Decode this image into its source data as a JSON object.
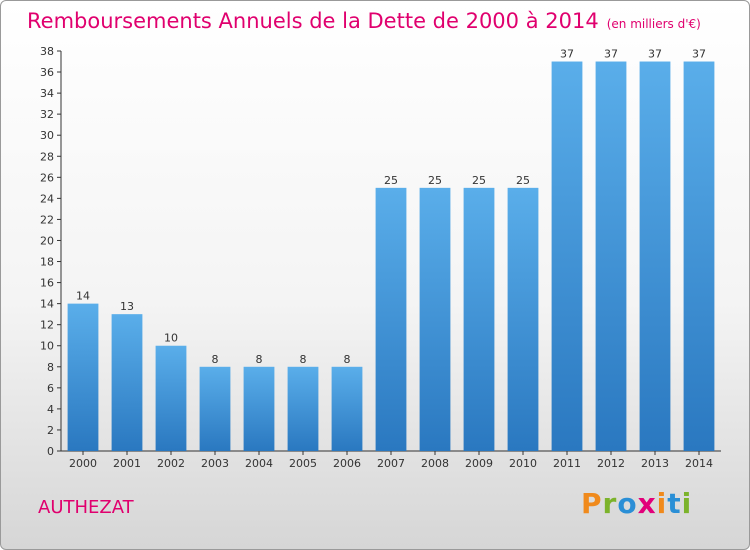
{
  "title": "Remboursements Annuels de la Dette de 2000 à 2014",
  "unit_label": "(en milliers d'€)",
  "commune": "AUTHEZAT",
  "logo_text": "Proxiti",
  "colors": {
    "title": "#e0006e",
    "bar_top": "#5aaeea",
    "bar_bottom": "#2a78c0",
    "axis": "#333333"
  },
  "chart_data": {
    "type": "bar",
    "title": "Remboursements Annuels de la Dette de 2000 à 2014",
    "xlabel": "",
    "ylabel": "",
    "categories": [
      "2000",
      "2001",
      "2002",
      "2003",
      "2004",
      "2005",
      "2006",
      "2007",
      "2008",
      "2009",
      "2010",
      "2011",
      "2012",
      "2013",
      "2014"
    ],
    "values": [
      14,
      13,
      10,
      8,
      8,
      8,
      8,
      25,
      25,
      25,
      25,
      37,
      37,
      37,
      37
    ],
    "ylim": [
      0,
      38
    ],
    "yticks": [
      0,
      2,
      4,
      6,
      8,
      10,
      12,
      14,
      16,
      18,
      20,
      22,
      24,
      26,
      28,
      30,
      32,
      34,
      36,
      38
    ],
    "grid": false,
    "legend": "none"
  }
}
